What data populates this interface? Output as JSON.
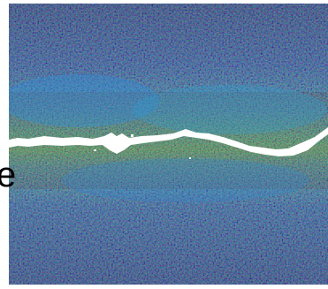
{
  "figure": {
    "left_label": "e",
    "colormap": {
      "low": "#0a1fb8",
      "mid_low": "#1a6ee6",
      "mid": "#38c8a8",
      "mid_high": "#7fe06a",
      "high": "#d46a3a"
    },
    "crack_color": "#ffffff"
  }
}
